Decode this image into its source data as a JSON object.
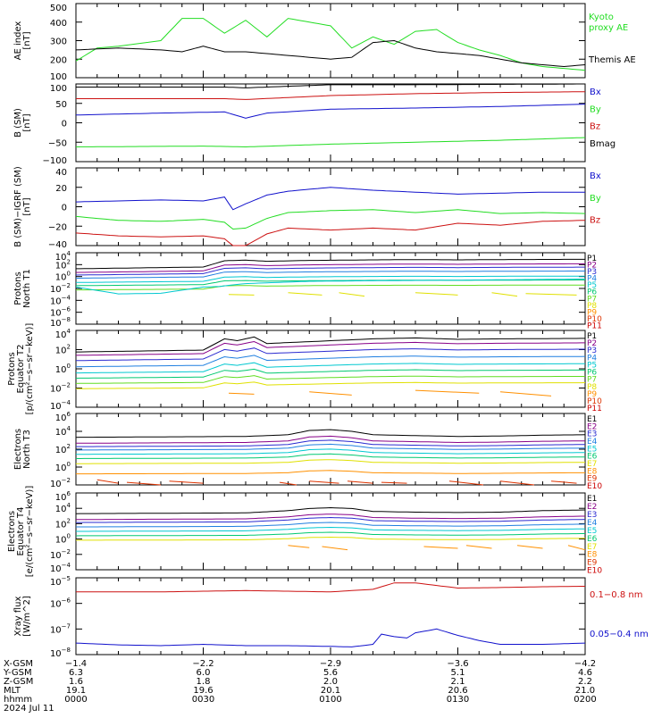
{
  "colors": {
    "black": "#000000",
    "green": "#22dd22",
    "red": "#cc1111",
    "blue": "#1111cc",
    "P": [
      "#000000",
      "#880088",
      "#2a2ad0",
      "#1f7fe0",
      "#00c8d0",
      "#00c870",
      "#60dd20",
      "#e0e000",
      "#ff9000",
      "#dd3300",
      "#cc0000"
    ],
    "E": [
      "#000000",
      "#880088",
      "#2a2ad0",
      "#1f7fe0",
      "#00c8d0",
      "#00c870",
      "#e0e000",
      "#ff9000",
      "#dd3300",
      "#cc0000"
    ]
  },
  "chart_data": [
    {
      "type": "line",
      "id": "ae",
      "ylabel": [
        "AE index",
        "[nT]"
      ],
      "yticks": [
        "500",
        "400",
        "300",
        "200",
        "100"
      ],
      "ylim": [
        100,
        500
      ],
      "series": [
        {
          "name": "Kyoto proxy AE",
          "name_lines": [
            "Kyoto",
            "proxy AE"
          ],
          "color": "green",
          "x": [
            0,
            5,
            10,
            20,
            25,
            30,
            35,
            40,
            45,
            50,
            55,
            60,
            65,
            70,
            75,
            80,
            85,
            90,
            95,
            100,
            105,
            110,
            115,
            120
          ],
          "values": [
            190,
            260,
            270,
            300,
            420,
            420,
            340,
            410,
            320,
            420,
            400,
            380,
            260,
            320,
            280,
            350,
            360,
            290,
            250,
            220,
            180,
            160,
            150,
            140
          ]
        },
        {
          "name": "Themis AE",
          "name_lines": [
            "Themis AE"
          ],
          "color": "black",
          "x": [
            0,
            10,
            20,
            25,
            30,
            35,
            40,
            45,
            50,
            55,
            60,
            65,
            70,
            75,
            80,
            85,
            90,
            95,
            100,
            105,
            110,
            115,
            120
          ],
          "values": [
            250,
            260,
            250,
            240,
            270,
            240,
            240,
            230,
            220,
            210,
            200,
            210,
            290,
            300,
            260,
            240,
            230,
            220,
            200,
            180,
            170,
            160,
            170
          ]
        }
      ]
    },
    {
      "type": "line",
      "id": "bsm",
      "ylabel": [
        "B (SM)",
        "[nT]"
      ],
      "yticks": [
        "100",
        "50",
        "0",
        "−50",
        "−100"
      ],
      "ylim": [
        -100,
        100
      ],
      "series": [
        {
          "name": "Bx",
          "color": "blue",
          "x": [
            0,
            20,
            35,
            40,
            45,
            60,
            80,
            100,
            120
          ],
          "values": [
            20,
            25,
            28,
            12,
            25,
            35,
            38,
            42,
            48
          ]
        },
        {
          "name": "By",
          "color": "green",
          "x": [
            0,
            30,
            40,
            60,
            80,
            100,
            120
          ],
          "values": [
            -62,
            -60,
            -62,
            -55,
            -50,
            -45,
            -38
          ]
        },
        {
          "name": "Bz",
          "color": "red",
          "x": [
            0,
            35,
            40,
            60,
            80,
            100,
            120
          ],
          "values": [
            62,
            62,
            60,
            70,
            75,
            78,
            80
          ]
        },
        {
          "name": "Bmag",
          "color": "black",
          "x": [
            0,
            35,
            40,
            60,
            80,
            100,
            120
          ],
          "values": [
            92,
            92,
            90,
            98,
            98,
            99,
            100
          ]
        }
      ]
    },
    {
      "type": "line",
      "id": "bigrf",
      "ylabel": [
        "B (SM)−IGRF (SM)",
        "[nT]"
      ],
      "yticks": [
        "40",
        "20",
        "0",
        "−20",
        "−40"
      ],
      "ylim": [
        -40,
        40
      ],
      "series": [
        {
          "name": "Bx",
          "color": "blue",
          "x": [
            0,
            10,
            20,
            30,
            35,
            37,
            40,
            45,
            50,
            60,
            70,
            80,
            90,
            100,
            110,
            120
          ],
          "values": [
            5,
            6,
            7,
            6,
            10,
            -3,
            3,
            12,
            16,
            20,
            17,
            15,
            13,
            14,
            15,
            15
          ]
        },
        {
          "name": "By",
          "color": "green",
          "x": [
            0,
            10,
            20,
            30,
            35,
            37,
            40,
            45,
            50,
            60,
            70,
            80,
            90,
            100,
            110,
            120
          ],
          "values": [
            -10,
            -14,
            -15,
            -13,
            -16,
            -23,
            -22,
            -12,
            -6,
            -4,
            -3,
            -6,
            -3,
            -7,
            -6,
            -7
          ]
        },
        {
          "name": "Bz",
          "color": "red",
          "x": [
            0,
            10,
            20,
            30,
            35,
            37,
            40,
            45,
            50,
            60,
            70,
            80,
            90,
            100,
            110,
            120
          ],
          "values": [
            -27,
            -30,
            -31,
            -30,
            -33,
            -40,
            -40,
            -28,
            -22,
            -24,
            -22,
            -24,
            -17,
            -19,
            -15,
            -14
          ]
        }
      ]
    },
    {
      "type": "line",
      "id": "pn",
      "ylog": true,
      "ylabel": [
        "Protons",
        "North T1"
      ],
      "ylim": [
        -8.3,
        4.2
      ],
      "yticks": [
        {
          "e": "4"
        },
        {
          "e": "2"
        },
        {
          "e": "0"
        },
        {
          "e": "−2"
        },
        {
          "e": "−4"
        },
        {
          "e": "−6"
        },
        {
          "e": "−8"
        }
      ],
      "legend": [
        "P1",
        "P2",
        "P3",
        "P4",
        "P5",
        "P6",
        "P7",
        "P8",
        "P9",
        "P10",
        "P11"
      ],
      "shape_x": [
        0,
        30,
        35,
        40,
        45,
        55,
        70,
        80,
        90,
        100,
        120
      ],
      "shape_d": [
        -0.6,
        -0.3,
        0.8,
        0.9,
        0.7,
        0.85,
        0.95,
        1.0,
        0.95,
        1.0,
        1.05
      ],
      "bases": [
        2.0,
        1.3,
        0.8,
        0.2,
        -0.6,
        -1.2,
        -2.0
      ],
      "gap_series": {
        "base": -3.1,
        "segments": [
          [
            36,
            42
          ],
          [
            50,
            58
          ],
          [
            62,
            68
          ],
          [
            80,
            90
          ],
          [
            98,
            104
          ],
          [
            106,
            118
          ]
        ]
      },
      "dip": {
        "x": [
          0,
          10,
          20,
          30,
          34,
          36,
          40,
          55,
          70,
          90,
          120
        ],
        "values": [
          -1.8,
          -3.0,
          -2.9,
          -1.8,
          -1.7,
          -1.5,
          -1.2,
          -0.8,
          -0.7,
          -0.6,
          -0.4
        ]
      }
    },
    {
      "type": "line",
      "id": "pe",
      "ylog": true,
      "ylabel": [
        "Protons",
        "Equator T2",
        "[p/(cm²−s−sr−keV)]"
      ],
      "ylim": [
        -4.1,
        4.1
      ],
      "yticks": [
        {
          "e": "4"
        },
        {
          "e": "2"
        },
        {
          "e": "0"
        },
        {
          "e": "−2"
        },
        {
          "e": "−4"
        }
      ],
      "legend": [
        "P1",
        "P2",
        "P3",
        "P4",
        "P5",
        "P6",
        "P7",
        "P8",
        "P9",
        "P10",
        "P11"
      ],
      "shape_x": [
        0,
        30,
        35,
        38,
        42,
        45,
        55,
        70,
        80,
        90,
        100,
        120
      ],
      "shape_d": [
        -0.5,
        -0.3,
        0.9,
        0.7,
        1.1,
        0.4,
        0.6,
        0.9,
        1.0,
        0.85,
        0.9,
        0.95
      ],
      "bases": [
        2.3,
        1.9,
        1.3,
        0.6,
        -0.1,
        -0.7,
        -1.3,
        -1.9
      ],
      "gap_series": {
        "base": -2.6,
        "segments": [
          [
            36,
            42
          ],
          [
            55,
            65
          ],
          [
            80,
            95
          ],
          [
            100,
            112
          ]
        ]
      },
      "dip": null
    },
    {
      "type": "line",
      "id": "en",
      "ylog": true,
      "ylabel": [
        "Electrons",
        "North T3"
      ],
      "ylim": [
        -2.2,
        6.2
      ],
      "yticks": [
        {
          "e": "6"
        },
        {
          "e": "4"
        },
        {
          "e": "2"
        },
        {
          "e": "0"
        },
        {
          "e": "−2"
        }
      ],
      "legend": [
        "E1",
        "E2",
        "E3",
        "E4",
        "E5",
        "E6",
        "E7",
        "E8",
        "E9",
        "E10"
      ],
      "shape_x": [
        0,
        20,
        40,
        50,
        55,
        60,
        65,
        70,
        80,
        90,
        100,
        110,
        120
      ],
      "shape_d": [
        0,
        0.05,
        0.1,
        0.3,
        0.8,
        0.9,
        0.7,
        0.3,
        0.2,
        0.1,
        0.15,
        0.25,
        0.3
      ],
      "bases": [
        3.4,
        2.7,
        2.3,
        1.9,
        1.4,
        0.9,
        0.3,
        -0.9
      ],
      "gap_series": {
        "base": -1.9,
        "segments": [
          [
            5,
            10
          ],
          [
            12,
            20
          ],
          [
            22,
            30
          ],
          [
            48,
            52
          ],
          [
            55,
            62
          ],
          [
            64,
            70
          ],
          [
            72,
            78
          ],
          [
            88,
            96
          ],
          [
            100,
            108
          ],
          [
            112,
            118
          ]
        ]
      },
      "dip": null
    },
    {
      "type": "line",
      "id": "ee",
      "ylog": true,
      "ylabel": [
        "Electrons",
        "Equator T4",
        "[e/(cm²−s−sr−keV)]"
      ],
      "ylim": [
        -4.2,
        6.2
      ],
      "yticks": [
        {
          "e": "6"
        },
        {
          "e": "4"
        },
        {
          "e": "2"
        },
        {
          "e": "0"
        },
        {
          "e": "−2"
        },
        {
          "e": "−4"
        }
      ],
      "legend": [
        "E1",
        "E2",
        "E3",
        "E4",
        "E5",
        "E6",
        "E7",
        "E8",
        "E9",
        "E10"
      ],
      "shape_x": [
        0,
        20,
        40,
        50,
        55,
        60,
        65,
        70,
        80,
        90,
        100,
        110,
        120
      ],
      "shape_d": [
        0,
        0.05,
        0.1,
        0.4,
        0.7,
        0.8,
        0.7,
        0.3,
        0.2,
        0.15,
        0.2,
        0.4,
        0.5
      ],
      "bases": [
        3.4,
        2.6,
        2.2,
        1.6,
        1.0,
        0.4,
        -0.2
      ],
      "gap_series": {
        "base": -1.2,
        "segments": [
          [
            50,
            55
          ],
          [
            58,
            64
          ],
          [
            82,
            90
          ],
          [
            92,
            98
          ],
          [
            104,
            110
          ],
          [
            116,
            120
          ]
        ]
      },
      "dip": null
    },
    {
      "type": "line",
      "id": "xray",
      "ylog": true,
      "ylabel": [
        "Xray flux",
        "[W/m^2]"
      ],
      "ylim": [
        -8.0,
        -5.0
      ],
      "yticks": [
        {
          "e": "−5"
        },
        {
          "e": "−6"
        },
        {
          "e": "−7"
        },
        {
          "e": "−8"
        }
      ],
      "series": [
        {
          "name": "0.1−0.8 nm",
          "color": "red",
          "x": [
            0,
            20,
            40,
            60,
            70,
            75,
            80,
            90,
            100,
            110,
            120
          ],
          "values": [
            -5.55,
            -5.55,
            -5.5,
            -5.55,
            -5.45,
            -5.2,
            -5.2,
            -5.4,
            -5.38,
            -5.35,
            -5.33
          ]
        },
        {
          "name": "0.05−0.4 nm",
          "color": "blue",
          "x": [
            0,
            10,
            20,
            30,
            40,
            50,
            60,
            65,
            70,
            72,
            75,
            78,
            80,
            85,
            90,
            95,
            100,
            110,
            120
          ],
          "values": [
            -7.55,
            -7.62,
            -7.65,
            -7.6,
            -7.65,
            -7.65,
            -7.68,
            -7.7,
            -7.6,
            -7.2,
            -7.3,
            -7.35,
            -7.15,
            -7.0,
            -7.25,
            -7.45,
            -7.6,
            -7.6,
            -7.55
          ]
        }
      ]
    }
  ],
  "axis_footer": {
    "rows": [
      {
        "label": "X-GSM",
        "values": [
          "−1.4",
          "−2.2",
          "−2.9",
          "−3.6",
          "−4.2"
        ]
      },
      {
        "label": "Y-GSM",
        "values": [
          "6.3",
          "6.0",
          "5.6",
          "5.1",
          "4.6"
        ]
      },
      {
        "label": "Z-GSM",
        "values": [
          "1.6",
          "1.8",
          "2.0",
          "2.1",
          "2.2"
        ]
      },
      {
        "label": "MLT",
        "values": [
          "19.1",
          "19.6",
          "20.1",
          "20.6",
          "21.0"
        ]
      },
      {
        "label": "hhmm",
        "values": [
          "0000",
          "0030",
          "0100",
          "0130",
          "0200"
        ]
      }
    ],
    "date": "2024 Jul 11"
  }
}
